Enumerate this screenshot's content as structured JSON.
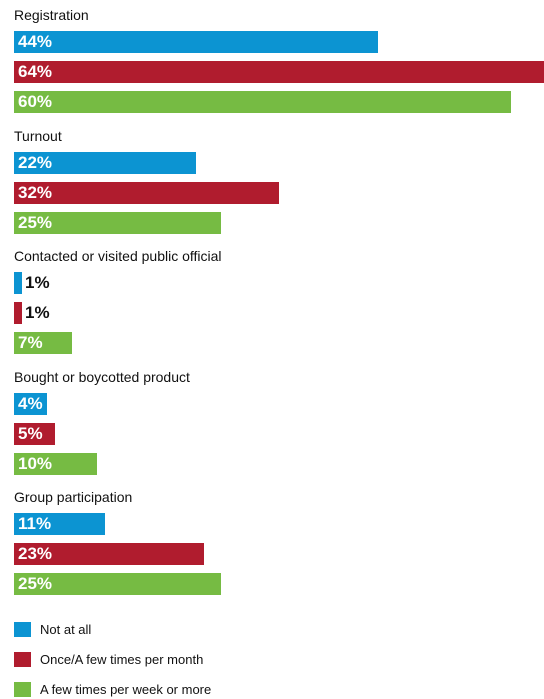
{
  "chart_data": {
    "type": "bar",
    "orientation": "horizontal",
    "title": "",
    "xlabel": "",
    "ylabel": "",
    "xlim": [
      0,
      64
    ],
    "grid": false,
    "legend_position": "bottom-left",
    "categories": [
      "Registration",
      "Turnout",
      "Contacted or visited public official",
      "Bought or boycotted product",
      "Group participation"
    ],
    "series": [
      {
        "name": "Not at all",
        "color": "#0c94d2",
        "values": [
          44,
          22,
          1,
          4,
          11
        ],
        "labels": [
          "44%",
          "22%",
          "1%",
          "4%",
          "11%"
        ]
      },
      {
        "name": "Once/A few times per month",
        "color": "#b01c2e",
        "values": [
          64,
          32,
          1,
          5,
          23
        ],
        "labels": [
          "64%",
          "32%",
          "1%",
          "5%",
          "23%"
        ]
      },
      {
        "name": "A few times per week or more",
        "color": "#76bb43",
        "values": [
          60,
          25,
          7,
          10,
          25
        ],
        "labels": [
          "60%",
          "25%",
          "7%",
          "10%",
          "25%"
        ]
      }
    ]
  }
}
